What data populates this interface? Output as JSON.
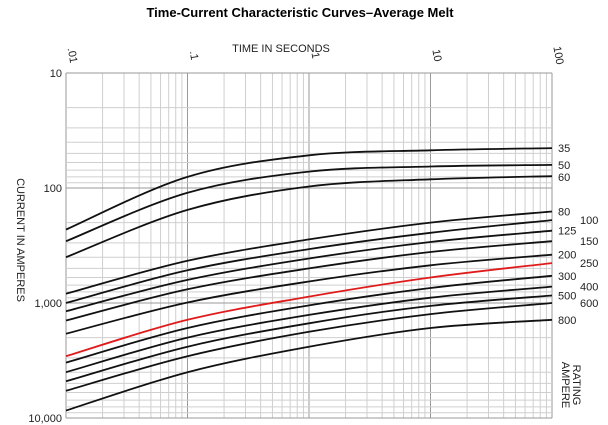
{
  "chart_data": {
    "type": "line",
    "title": "Time-Current Characteristic Curves–Average Melt",
    "xlabel": "TIME IN SECONDS",
    "ylabel": "CURRENT IN AMPERES",
    "x_scale": "log",
    "y_scale": "log",
    "y_inverted": true,
    "xlim": [
      0.01,
      100
    ],
    "ylim": [
      10,
      10000
    ],
    "x_ticks": [
      ".01",
      ".1",
      "1",
      "10",
      "100"
    ],
    "y_ticks": [
      "10",
      "100",
      "1,000",
      "10,000"
    ],
    "grid": true,
    "legend_title": "AMPERE RATING",
    "series": [
      {
        "name": "35",
        "color": "#111111",
        "points": [
          [
            0.01,
            230
          ],
          [
            0.1,
            80
          ],
          [
            1,
            52
          ],
          [
            10,
            47
          ],
          [
            100,
            45
          ]
        ]
      },
      {
        "name": "50",
        "color": "#111111",
        "points": [
          [
            0.01,
            290
          ],
          [
            0.1,
            110
          ],
          [
            1,
            72
          ],
          [
            10,
            65
          ],
          [
            100,
            63
          ]
        ]
      },
      {
        "name": "60",
        "color": "#111111",
        "points": [
          [
            0.01,
            400
          ],
          [
            0.1,
            155
          ],
          [
            1,
            97
          ],
          [
            10,
            84
          ],
          [
            100,
            79
          ]
        ]
      },
      {
        "name": "80",
        "color": "#111111",
        "points": [
          [
            0.01,
            830
          ],
          [
            0.1,
            430
          ],
          [
            1,
            280
          ],
          [
            10,
            200
          ],
          [
            100,
            160
          ]
        ]
      },
      {
        "name": "100",
        "color": "#111111",
        "points": [
          [
            0.01,
            1000
          ],
          [
            0.1,
            520
          ],
          [
            1,
            340
          ],
          [
            10,
            245
          ],
          [
            100,
            190
          ]
        ]
      },
      {
        "name": "125",
        "color": "#111111",
        "points": [
          [
            0.01,
            1180
          ],
          [
            0.1,
            630
          ],
          [
            1,
            410
          ],
          [
            10,
            295
          ],
          [
            100,
            235
          ]
        ]
      },
      {
        "name": "150",
        "color": "#111111",
        "points": [
          [
            0.01,
            1420
          ],
          [
            0.1,
            760
          ],
          [
            1,
            500
          ],
          [
            10,
            360
          ],
          [
            100,
            290
          ]
        ]
      },
      {
        "name": "200",
        "color": "#111111",
        "points": [
          [
            0.01,
            1850
          ],
          [
            0.1,
            990
          ],
          [
            1,
            650
          ],
          [
            10,
            470
          ],
          [
            100,
            380
          ]
        ]
      },
      {
        "name": "250",
        "color": "#e01b1b",
        "points": [
          [
            0.01,
            2900
          ],
          [
            0.1,
            1400
          ],
          [
            1,
            880
          ],
          [
            10,
            600
          ],
          [
            100,
            450
          ]
        ]
      },
      {
        "name": "300",
        "color": "#111111",
        "points": [
          [
            0.01,
            3300
          ],
          [
            0.1,
            1650
          ],
          [
            1,
            1050
          ],
          [
            10,
            740
          ],
          [
            100,
            580
          ]
        ]
      },
      {
        "name": "400",
        "color": "#111111",
        "points": [
          [
            0.01,
            4000
          ],
          [
            0.1,
            2000
          ],
          [
            1,
            1270
          ],
          [
            10,
            900
          ],
          [
            100,
            720
          ]
        ]
      },
      {
        "name": "500",
        "color": "#111111",
        "points": [
          [
            0.01,
            4800
          ],
          [
            0.1,
            2400
          ],
          [
            1,
            1500
          ],
          [
            10,
            1060
          ],
          [
            100,
            860
          ]
        ]
      },
      {
        "name": "600",
        "color": "#111111",
        "points": [
          [
            0.01,
            5800
          ],
          [
            0.1,
            2900
          ],
          [
            1,
            1780
          ],
          [
            10,
            1250
          ],
          [
            100,
            1000
          ]
        ]
      },
      {
        "name": "800",
        "color": "#111111",
        "points": [
          [
            0.01,
            8600
          ],
          [
            0.1,
            4000
          ],
          [
            1,
            2400
          ],
          [
            10,
            1650
          ],
          [
            100,
            1400
          ]
        ]
      }
    ]
  }
}
